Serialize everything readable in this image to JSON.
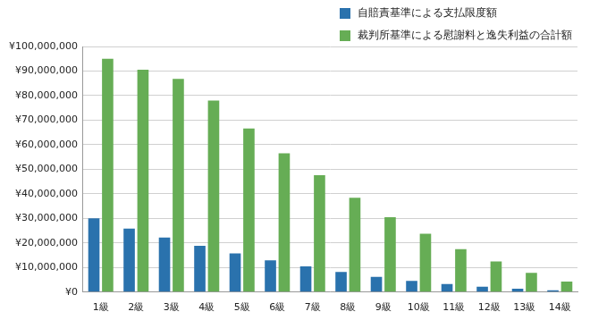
{
  "chart_data": {
    "type": "bar",
    "categories": [
      "1級",
      "2級",
      "3級",
      "4級",
      "5級",
      "6級",
      "7級",
      "8級",
      "9級",
      "10級",
      "11級",
      "12級",
      "13級",
      "14級"
    ],
    "series": [
      {
        "name": "自賠責基準による支払限度額",
        "color": "#2a72ad",
        "values": [
          30000000,
          25900000,
          22190000,
          18890000,
          15740000,
          12960000,
          10510000,
          8190000,
          6160000,
          4610000,
          3310000,
          2240000,
          1390000,
          750000
        ]
      },
      {
        "name": "裁判所基準による慰謝料と逸失利益の合計額",
        "color": "#66ad55",
        "values": [
          95000000,
          90500000,
          86800000,
          78000000,
          66600000,
          56500000,
          47600000,
          38400000,
          30500000,
          23800000,
          17500000,
          12500000,
          7800000,
          4300000
        ]
      }
    ],
    "ylim": [
      0,
      100000000
    ],
    "yticks": [
      {
        "value": 0,
        "label": "¥0"
      },
      {
        "value": 10000000,
        "label": "¥10,000,000"
      },
      {
        "value": 20000000,
        "label": "¥20,000,000"
      },
      {
        "value": 30000000,
        "label": "¥30,000,000"
      },
      {
        "value": 40000000,
        "label": "¥40,000,000"
      },
      {
        "value": 50000000,
        "label": "¥50,000,000"
      },
      {
        "value": 60000000,
        "label": "¥60,000,000"
      },
      {
        "value": 70000000,
        "label": "¥70,000,000"
      },
      {
        "value": 80000000,
        "label": "¥80,000,000"
      },
      {
        "value": 90000000,
        "label": "¥90,000,000"
      },
      {
        "value": 100000000,
        "label": "¥100,000,000"
      }
    ],
    "grid": true,
    "legend": "top-right"
  }
}
